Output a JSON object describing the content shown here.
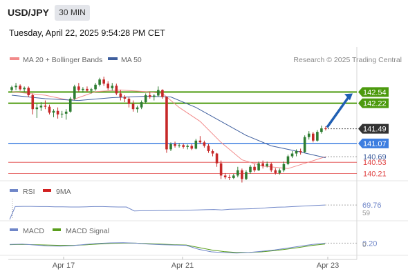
{
  "header": {
    "symbol": "USD/JPY",
    "timeframe": "30 MIN",
    "datetime": "Tuesday, April 22, 2025 9:54:28 PM CET"
  },
  "colors": {
    "up": "#2e7d32",
    "down": "#c62828",
    "ma20": "#f28b8b",
    "ma50": "#3f5f9e",
    "support_resistance_green": "#4c9a0e",
    "current_blue": "#3d7ee0",
    "pivot_red": "#e04343",
    "arrow": "#1f5fb3",
    "rsi": "#6f86c8",
    "rsi_ma": "#d11f1f",
    "macd": "#6f86c8",
    "macd_signal": "#5a9e1d"
  },
  "chart_data": {
    "type": "candlestick",
    "title": "USD/JPY 30 MIN",
    "legend": [
      {
        "name": "MA 20 + Bollinger Bands",
        "color": "#f28b8b"
      },
      {
        "name": "MA 50",
        "color": "#3f5f9e"
      }
    ],
    "watermark": "Research © 2025 Trading Central",
    "x_tick_labels": [
      "Apr 17",
      "Apr 21",
      "Apr 23"
    ],
    "ylim": [
      140.0,
      143.2
    ],
    "price_levels": [
      {
        "value": 142.54,
        "label": "142.54",
        "kind": "resistance"
      },
      {
        "value": 142.22,
        "label": "142.22",
        "kind": "resistance"
      },
      {
        "value": 141.49,
        "label": "141.49",
        "kind": "last"
      },
      {
        "value": 141.07,
        "label": "141.07",
        "kind": "pivot"
      },
      {
        "value": 140.69,
        "label": "140.69",
        "kind": "ma"
      },
      {
        "value": 140.53,
        "label": "140.53",
        "kind": "support"
      },
      {
        "value": 140.21,
        "label": "140.21",
        "kind": "support"
      }
    ],
    "ohlc": [
      [
        142.6,
        142.72,
        142.55,
        142.68
      ],
      [
        142.68,
        142.8,
        142.6,
        142.72
      ],
      [
        142.72,
        142.76,
        142.58,
        142.62
      ],
      [
        142.62,
        142.7,
        142.54,
        142.66
      ],
      [
        142.66,
        142.7,
        142.4,
        142.45
      ],
      [
        142.45,
        142.5,
        141.9,
        142.05
      ],
      [
        142.05,
        142.2,
        141.8,
        142.1
      ],
      [
        142.1,
        142.25,
        142.0,
        142.15
      ],
      [
        142.15,
        142.3,
        142.05,
        142.12
      ],
      [
        142.12,
        142.18,
        141.9,
        141.95
      ],
      [
        141.95,
        142.05,
        141.82,
        142.0
      ],
      [
        142.0,
        142.1,
        141.78,
        141.9
      ],
      [
        141.9,
        142.0,
        141.8,
        141.92
      ],
      [
        141.92,
        142.05,
        141.75,
        141.98
      ],
      [
        141.98,
        142.4,
        141.95,
        142.35
      ],
      [
        142.35,
        142.75,
        142.3,
        142.7
      ],
      [
        142.7,
        142.8,
        142.55,
        142.6
      ],
      [
        142.6,
        142.68,
        142.52,
        142.63
      ],
      [
        142.63,
        142.7,
        142.55,
        142.58
      ],
      [
        142.58,
        142.66,
        142.5,
        142.62
      ],
      [
        142.62,
        142.8,
        142.58,
        142.75
      ],
      [
        142.75,
        142.95,
        142.7,
        142.9
      ],
      [
        142.9,
        142.98,
        142.72,
        142.78
      ],
      [
        142.78,
        142.85,
        142.6,
        142.65
      ],
      [
        142.65,
        142.8,
        142.58,
        142.72
      ],
      [
        142.72,
        142.78,
        142.45,
        142.5
      ],
      [
        142.5,
        142.6,
        142.3,
        142.4
      ],
      [
        142.4,
        142.45,
        142.25,
        142.35
      ],
      [
        142.35,
        142.4,
        142.1,
        142.2
      ],
      [
        142.2,
        142.3,
        141.98,
        142.05
      ],
      [
        142.05,
        142.15,
        141.95,
        142.1
      ],
      [
        142.1,
        142.3,
        142.05,
        142.25
      ],
      [
        142.25,
        142.5,
        142.2,
        142.45
      ],
      [
        142.45,
        142.55,
        142.35,
        142.4
      ],
      [
        142.4,
        142.48,
        142.3,
        142.44
      ],
      [
        142.44,
        142.7,
        142.4,
        142.6
      ],
      [
        142.6,
        142.62,
        142.35,
        142.4
      ],
      [
        142.4,
        142.42,
        140.8,
        140.9
      ],
      [
        140.9,
        141.1,
        140.85,
        141.05
      ],
      [
        141.05,
        141.12,
        140.95,
        141.0
      ],
      [
        141.0,
        141.08,
        140.95,
        141.02
      ],
      [
        141.02,
        141.06,
        140.92,
        140.97
      ],
      [
        140.97,
        141.04,
        140.9,
        141.0
      ],
      [
        141.0,
        141.05,
        140.88,
        140.92
      ],
      [
        140.92,
        141.2,
        140.9,
        141.15
      ],
      [
        141.15,
        141.28,
        141.05,
        141.1
      ],
      [
        141.1,
        141.15,
        140.95,
        141.0
      ],
      [
        141.0,
        141.05,
        140.8,
        140.85
      ],
      [
        140.85,
        140.9,
        140.7,
        140.78
      ],
      [
        140.78,
        140.8,
        140.4,
        140.5
      ],
      [
        140.5,
        140.58,
        140.05,
        140.15
      ],
      [
        140.15,
        140.22,
        140.05,
        140.1
      ],
      [
        140.1,
        140.18,
        140.02,
        140.08
      ],
      [
        140.08,
        140.2,
        140.05,
        140.15
      ],
      [
        140.15,
        140.4,
        140.1,
        140.3
      ],
      [
        140.3,
        140.35,
        139.95,
        140.05
      ],
      [
        140.05,
        140.3,
        140.02,
        140.25
      ],
      [
        140.25,
        140.45,
        140.2,
        140.4
      ],
      [
        140.4,
        140.48,
        140.25,
        140.3
      ],
      [
        140.3,
        140.55,
        140.28,
        140.5
      ],
      [
        140.5,
        140.58,
        140.35,
        140.42
      ],
      [
        140.42,
        140.55,
        140.38,
        140.48
      ],
      [
        140.48,
        140.52,
        140.25,
        140.3
      ],
      [
        140.3,
        140.36,
        140.18,
        140.22
      ],
      [
        140.22,
        140.35,
        140.18,
        140.3
      ],
      [
        140.3,
        140.55,
        140.25,
        140.48
      ],
      [
        140.48,
        140.75,
        140.45,
        140.7
      ],
      [
        140.7,
        140.85,
        140.65,
        140.78
      ],
      [
        140.78,
        140.9,
        140.7,
        140.85
      ],
      [
        140.85,
        140.92,
        140.75,
        140.82
      ],
      [
        140.82,
        141.3,
        140.8,
        141.25
      ],
      [
        141.25,
        141.42,
        141.18,
        141.35
      ],
      [
        141.35,
        141.4,
        141.1,
        141.15
      ],
      [
        141.15,
        141.45,
        141.12,
        141.4
      ],
      [
        141.4,
        141.58,
        141.35,
        141.5
      ],
      [
        141.5,
        141.56,
        141.44,
        141.49
      ]
    ],
    "ma20": [
      [
        0,
        142.55
      ],
      [
        8,
        142.45
      ],
      [
        14,
        142.3
      ],
      [
        20,
        142.55
      ],
      [
        26,
        142.6
      ],
      [
        32,
        142.55
      ],
      [
        36,
        142.5
      ],
      [
        40,
        142.1
      ],
      [
        45,
        141.7
      ],
      [
        50,
        141.1
      ],
      [
        55,
        140.6
      ],
      [
        60,
        140.42
      ],
      [
        66,
        140.35
      ],
      [
        70,
        140.5
      ],
      [
        75,
        140.69
      ]
    ],
    "ma50": [
      [
        0,
        142.45
      ],
      [
        8,
        142.35
      ],
      [
        16,
        142.3
      ],
      [
        24,
        142.38
      ],
      [
        32,
        142.42
      ],
      [
        38,
        142.4
      ],
      [
        44,
        142.1
      ],
      [
        50,
        141.7
      ],
      [
        56,
        141.3
      ],
      [
        62,
        141.0
      ],
      [
        68,
        140.85
      ],
      [
        75,
        140.66
      ]
    ],
    "rsi": {
      "legend": [
        {
          "name": "RSI",
          "color": "#6f86c8"
        },
        {
          "name": "9MA",
          "color": "#d11f1f"
        }
      ],
      "value_label": "69.76",
      "secondary_label": "59",
      "values": [
        62,
        63,
        63,
        62,
        62,
        61,
        61,
        60,
        60,
        61,
        62,
        62,
        61,
        60,
        60,
        41,
        42,
        42,
        43,
        43,
        44,
        44,
        45,
        46,
        47,
        48,
        46,
        49,
        50,
        51,
        52,
        54,
        57,
        59,
        60,
        62,
        64,
        66,
        68,
        69.76
      ]
    },
    "macd": {
      "legend": [
        {
          "name": "MACD",
          "color": "#6f86c8"
        },
        {
          "name": "MACD Signal",
          "color": "#5a9e1d"
        }
      ],
      "value_label": "0.20",
      "zero_label": "0",
      "macd": [
        0.1,
        0.12,
        0.05,
        -0.02,
        -0.04,
        0.0,
        0.1,
        0.18,
        0.22,
        0.24,
        0.2,
        0.12,
        0.08,
        0.05,
        0.02,
        -0.3,
        -0.5,
        -0.56,
        -0.6,
        -0.55,
        -0.45,
        -0.35,
        -0.2,
        -0.05,
        0.1,
        0.2
      ],
      "signal": [
        0.08,
        0.1,
        0.08,
        0.05,
        0.02,
        0.02,
        0.06,
        0.12,
        0.18,
        0.2,
        0.2,
        0.16,
        0.12,
        0.08,
        0.05,
        -0.15,
        -0.35,
        -0.48,
        -0.55,
        -0.55,
        -0.5,
        -0.4,
        -0.28,
        -0.14,
        0.02,
        0.12
      ]
    }
  }
}
